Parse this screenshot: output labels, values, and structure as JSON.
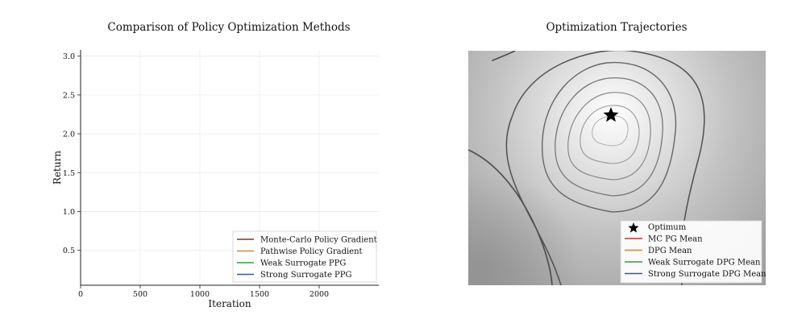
{
  "chart_data": [
    {
      "type": "line",
      "title": "Comparison of Policy Optimization Methods",
      "xlabel": "Iteration",
      "ylabel": "Return",
      "xlim": [
        0,
        2500
      ],
      "ylim": [
        0.05,
        3.08
      ],
      "x_ticks": [
        0,
        500,
        1000,
        1500,
        2000
      ],
      "x_tick_labels": [
        "0",
        "500",
        "1000",
        "1500",
        "2000"
      ],
      "y_ticks": [
        0.5,
        1.0,
        1.5,
        2.0,
        2.5,
        3.0
      ],
      "y_tick_labels": [
        "0.5",
        "1.0",
        "1.5",
        "2.0",
        "2.5",
        "3.0"
      ],
      "grid": true,
      "legend_position": "bottom-right",
      "series": [
        {
          "name": "Monte-Carlo Policy Gradient",
          "color": "#8b2e2e",
          "values": []
        },
        {
          "name": "Pathwise Policy Gradient",
          "color": "#d9823b",
          "values": []
        },
        {
          "name": "Weak Surrogate PPG",
          "color": "#3a9a3a",
          "values": []
        },
        {
          "name": "Strong Surrogate PPG",
          "color": "#3355bb",
          "values": []
        }
      ]
    },
    {
      "type": "heatmap",
      "title": "Optimization Trajectories",
      "colormap": "grayscale",
      "contours": true,
      "legend_position": "bottom-right",
      "optimum_label": "Optimum",
      "series": [
        {
          "name": "MC PG Mean",
          "color": "#b03a3a"
        },
        {
          "name": "DPG Mean",
          "color": "#d9823b"
        },
        {
          "name": "Weak Surrogate DPG Mean",
          "color": "#3a9a3a"
        },
        {
          "name": "Strong Surrogate DPG Mean",
          "color": "#3355bb"
        }
      ]
    }
  ]
}
